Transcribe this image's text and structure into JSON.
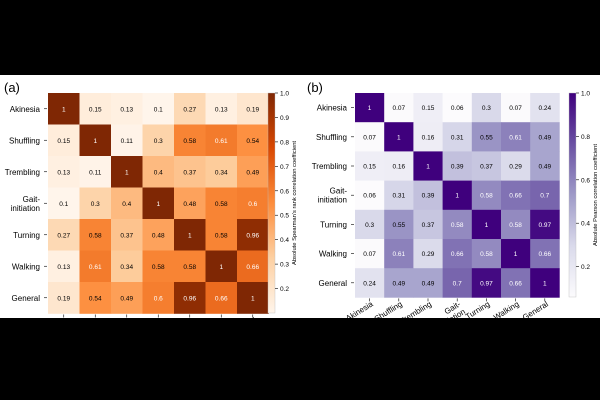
{
  "chart_data": [
    {
      "type": "heatmap",
      "panel_label": "(a)",
      "labels": [
        "Akinesia",
        "Shuffling",
        "Trembling",
        "Gait-\ninitiation",
        "Turning",
        "Walking",
        "General"
      ],
      "matrix": [
        [
          1,
          0.15,
          0.13,
          0.1,
          0.27,
          0.13,
          0.19
        ],
        [
          0.15,
          1,
          0.11,
          0.3,
          0.58,
          0.61,
          0.54
        ],
        [
          0.13,
          0.11,
          1,
          0.4,
          0.37,
          0.34,
          0.49
        ],
        [
          0.1,
          0.3,
          0.4,
          1,
          0.48,
          0.58,
          0.6
        ],
        [
          0.27,
          0.58,
          0.37,
          0.48,
          1,
          0.58,
          0.96
        ],
        [
          0.13,
          0.61,
          0.34,
          0.58,
          0.58,
          1,
          0.66
        ],
        [
          0.19,
          0.54,
          0.49,
          0.6,
          0.96,
          0.66,
          1
        ]
      ],
      "colorbar": {
        "label": "Absolute Spearman's rank correlation coefficient",
        "ticks": [
          "0.2",
          "0.3",
          "0.4",
          "0.5",
          "0.6",
          "0.7",
          "0.8",
          "0.9",
          "1.0"
        ],
        "range": [
          0.1,
          1.0
        ],
        "cmap": [
          "#fff5eb",
          "#fdd0a2",
          "#fd8d3c",
          "#d94801",
          "#7f2704"
        ]
      }
    },
    {
      "type": "heatmap",
      "panel_label": "(b)",
      "labels": [
        "Akinesia",
        "Shuffling",
        "Trembling",
        "Gait-\ninitiation",
        "Turning",
        "Walking",
        "General"
      ],
      "matrix": [
        [
          1,
          0.07,
          0.15,
          0.06,
          0.3,
          0.07,
          0.24
        ],
        [
          0.07,
          1,
          0.16,
          0.31,
          0.55,
          0.61,
          0.49
        ],
        [
          0.15,
          0.16,
          1,
          0.39,
          0.37,
          0.29,
          0.49
        ],
        [
          0.06,
          0.31,
          0.39,
          1,
          0.58,
          0.66,
          0.7
        ],
        [
          0.3,
          0.55,
          0.37,
          0.58,
          1,
          0.58,
          0.97
        ],
        [
          0.07,
          0.61,
          0.29,
          0.66,
          0.58,
          1,
          0.66
        ],
        [
          0.24,
          0.49,
          0.49,
          0.7,
          0.97,
          0.66,
          1
        ]
      ],
      "colorbar": {
        "label": "Absolute Pearson correlation coefficient",
        "ticks": [
          "0.2",
          "0.4",
          "0.6",
          "0.8",
          "1.0"
        ],
        "range": [
          0.06,
          1.0
        ],
        "cmap": [
          "#fcfbfd",
          "#dadaeb",
          "#9e9ac8",
          "#6a51a3",
          "#3f007d"
        ]
      }
    }
  ]
}
